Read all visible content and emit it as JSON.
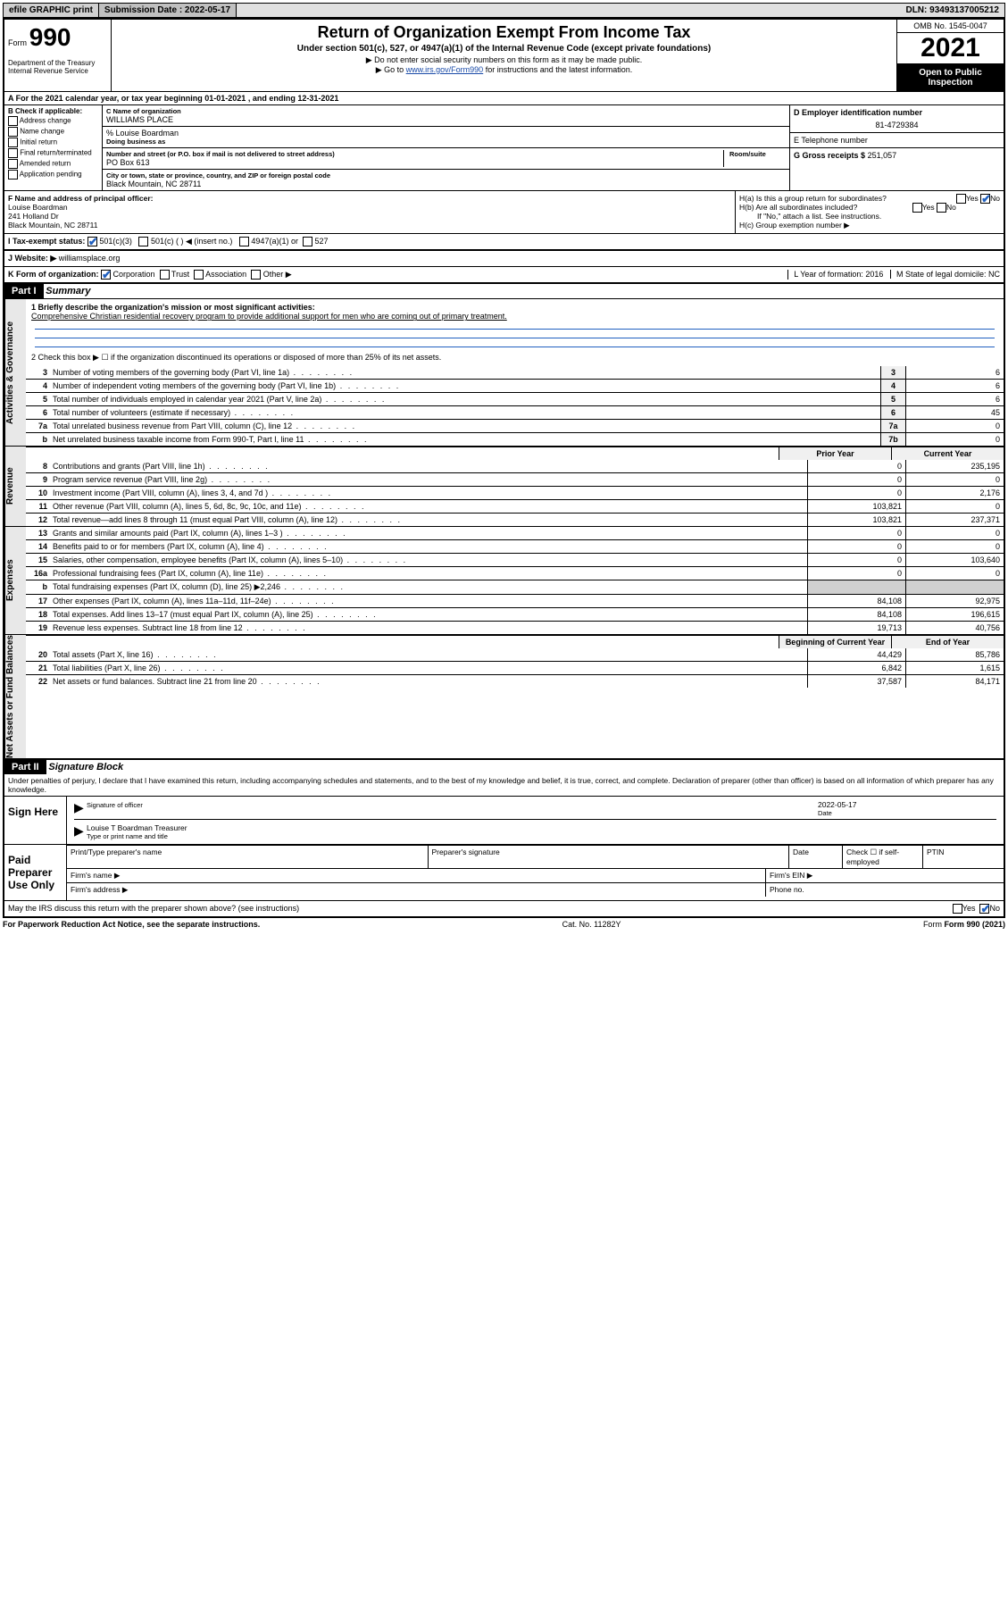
{
  "topbar": {
    "efile": "efile GRAPHIC print",
    "submission_label": "Submission Date : 2022-05-17",
    "dln": "DLN: 93493137005212"
  },
  "header": {
    "form_label": "Form",
    "form_number": "990",
    "title": "Return of Organization Exempt From Income Tax",
    "subtitle": "Under section 501(c), 527, or 4947(a)(1) of the Internal Revenue Code (except private foundations)",
    "note1": "Do not enter social security numbers on this form as it may be made public.",
    "note2_pre": "Go to ",
    "note2_link": "www.irs.gov/Form990",
    "note2_post": " for instructions and the latest information.",
    "dept": "Department of the Treasury\nInternal Revenue Service",
    "omb": "OMB No. 1545-0047",
    "year": "2021",
    "open": "Open to Public Inspection"
  },
  "period": {
    "label_a": "A For the 2021 calendar year, or tax year beginning ",
    "begin": "01-01-2021",
    "mid": " , and ending ",
    "end": "12-31-2021"
  },
  "boxB": {
    "title": "B Check if applicable:",
    "opts": [
      "Address change",
      "Name change",
      "Initial return",
      "Final return/terminated",
      "Amended return",
      "Application pending"
    ]
  },
  "boxC": {
    "name_label": "C Name of organization",
    "name": "WILLIAMS PLACE",
    "care_label": "% Louise Boardman",
    "dba_label": "Doing business as",
    "addr_label": "Number and street (or P.O. box if mail is not delivered to street address)",
    "room_label": "Room/suite",
    "addr": "PO Box 613",
    "city_label": "City or town, state or province, country, and ZIP or foreign postal code",
    "city": "Black Mountain, NC  28711"
  },
  "boxD": {
    "label": "D Employer identification number",
    "value": "81-4729384"
  },
  "boxE": {
    "label": "E Telephone number",
    "value": ""
  },
  "boxG": {
    "label": "G Gross receipts $",
    "value": "251,057"
  },
  "boxF": {
    "label": "F Name and address of principal officer:",
    "name": "Louise Boardman",
    "addr1": "241 Holland Dr",
    "addr2": "Black Mountain, NC  28711"
  },
  "boxH": {
    "a": "H(a)  Is this a group return for subordinates?",
    "a_yes": "Yes",
    "a_no": "No",
    "b": "H(b)  Are all subordinates included?",
    "b_yes": "Yes",
    "b_no": "No",
    "b_note": "If \"No,\" attach a list. See instructions.",
    "c": "H(c)  Group exemption number ▶"
  },
  "boxI": {
    "label": "I   Tax-exempt status:",
    "o1": "501(c)(3)",
    "o2": "501(c) (  ) ◀ (insert no.)",
    "o3": "4947(a)(1) or",
    "o4": "527"
  },
  "boxJ": {
    "label": "J   Website: ▶",
    "value": "williamsplace.org"
  },
  "boxK": {
    "label": "K Form of organization:",
    "opts": [
      "Corporation",
      "Trust",
      "Association",
      "Other ▶"
    ]
  },
  "boxL": {
    "label": "L Year of formation: 2016"
  },
  "boxM": {
    "label": "M State of legal domicile: NC"
  },
  "part1": {
    "header": "Part I",
    "title": "Summary",
    "line1_label": "1  Briefly describe the organization's mission or most significant activities:",
    "mission": "Comprehensive Christian residential recovery program to provide additional support for men who are coming out of primary treatment.",
    "line2": "2   Check this box ▶ ☐  if the organization discontinued its operations or disposed of more than 25% of its net assets."
  },
  "governance_lines": [
    {
      "num": "3",
      "desc": "Number of voting members of the governing body (Part VI, line 1a)",
      "box": "3",
      "val": "6"
    },
    {
      "num": "4",
      "desc": "Number of independent voting members of the governing body (Part VI, line 1b)",
      "box": "4",
      "val": "6"
    },
    {
      "num": "5",
      "desc": "Total number of individuals employed in calendar year 2021 (Part V, line 2a)",
      "box": "5",
      "val": "6"
    },
    {
      "num": "6",
      "desc": "Total number of volunteers (estimate if necessary)",
      "box": "6",
      "val": "45"
    },
    {
      "num": "7a",
      "desc": "Total unrelated business revenue from Part VIII, column (C), line 12",
      "box": "7a",
      "val": "0"
    },
    {
      "num": "b",
      "desc": "Net unrelated business taxable income from Form 990-T, Part I, line 11",
      "box": "7b",
      "val": "0"
    }
  ],
  "year_headers": {
    "prior": "Prior Year",
    "current": "Current Year"
  },
  "revenue_lines": [
    {
      "num": "8",
      "desc": "Contributions and grants (Part VIII, line 1h)",
      "prior": "0",
      "curr": "235,195"
    },
    {
      "num": "9",
      "desc": "Program service revenue (Part VIII, line 2g)",
      "prior": "0",
      "curr": "0"
    },
    {
      "num": "10",
      "desc": "Investment income (Part VIII, column (A), lines 3, 4, and 7d )",
      "prior": "0",
      "curr": "2,176"
    },
    {
      "num": "11",
      "desc": "Other revenue (Part VIII, column (A), lines 5, 6d, 8c, 9c, 10c, and 11e)",
      "prior": "103,821",
      "curr": "0"
    },
    {
      "num": "12",
      "desc": "Total revenue—add lines 8 through 11 (must equal Part VIII, column (A), line 12)",
      "prior": "103,821",
      "curr": "237,371"
    }
  ],
  "expense_lines": [
    {
      "num": "13",
      "desc": "Grants and similar amounts paid (Part IX, column (A), lines 1–3 )",
      "prior": "0",
      "curr": "0"
    },
    {
      "num": "14",
      "desc": "Benefits paid to or for members (Part IX, column (A), line 4)",
      "prior": "0",
      "curr": "0"
    },
    {
      "num": "15",
      "desc": "Salaries, other compensation, employee benefits (Part IX, column (A), lines 5–10)",
      "prior": "0",
      "curr": "103,640"
    },
    {
      "num": "16a",
      "desc": "Professional fundraising fees (Part IX, column (A), line 11e)",
      "prior": "0",
      "curr": "0"
    },
    {
      "num": "b",
      "desc": "Total fundraising expenses (Part IX, column (D), line 25) ▶2,246",
      "prior": "shade",
      "curr": "shade"
    },
    {
      "num": "17",
      "desc": "Other expenses (Part IX, column (A), lines 11a–11d, 11f–24e)",
      "prior": "84,108",
      "curr": "92,975"
    },
    {
      "num": "18",
      "desc": "Total expenses. Add lines 13–17 (must equal Part IX, column (A), line 25)",
      "prior": "84,108",
      "curr": "196,615"
    },
    {
      "num": "19",
      "desc": "Revenue less expenses. Subtract line 18 from line 12",
      "prior": "19,713",
      "curr": "40,756"
    }
  ],
  "balance_headers": {
    "begin": "Beginning of Current Year",
    "end": "End of Year"
  },
  "balance_lines": [
    {
      "num": "20",
      "desc": "Total assets (Part X, line 16)",
      "prior": "44,429",
      "curr": "85,786"
    },
    {
      "num": "21",
      "desc": "Total liabilities (Part X, line 26)",
      "prior": "6,842",
      "curr": "1,615"
    },
    {
      "num": "22",
      "desc": "Net assets or fund balances. Subtract line 21 from line 20",
      "prior": "37,587",
      "curr": "84,171"
    }
  ],
  "part2": {
    "header": "Part II",
    "title": "Signature Block",
    "declare": "Under penalties of perjury, I declare that I have examined this return, including accompanying schedules and statements, and to the best of my knowledge and belief, it is true, correct, and complete. Declaration of preparer (other than officer) is based on all information of which preparer has any knowledge.",
    "sign_here": "Sign Here",
    "sig_officer": "Signature of officer",
    "sig_date": "2022-05-17",
    "date_label": "Date",
    "officer_name": "Louise T Boardman  Treasurer",
    "type_name": "Type or print name and title",
    "paid_label": "Paid Preparer Use Only",
    "prep_name_label": "Print/Type preparer's name",
    "prep_sig_label": "Preparer's signature",
    "prep_date_label": "Date",
    "prep_check": "Check ☐ if self-employed",
    "ptin_label": "PTIN",
    "firm_name": "Firm's name  ▶",
    "firm_ein": "Firm's EIN ▶",
    "firm_addr": "Firm's address ▶",
    "phone": "Phone no.",
    "discuss": "May the IRS discuss this return with the preparer shown above? (see instructions)",
    "discuss_yes": "Yes",
    "discuss_no": "No"
  },
  "footer": {
    "paperwork": "For Paperwork Reduction Act Notice, see the separate instructions.",
    "cat": "Cat. No. 11282Y",
    "form": "Form 990 (2021)"
  },
  "sidebars": {
    "gov": "Activities & Governance",
    "rev": "Revenue",
    "exp": "Expenses",
    "bal": "Net Assets or Fund Balances"
  }
}
